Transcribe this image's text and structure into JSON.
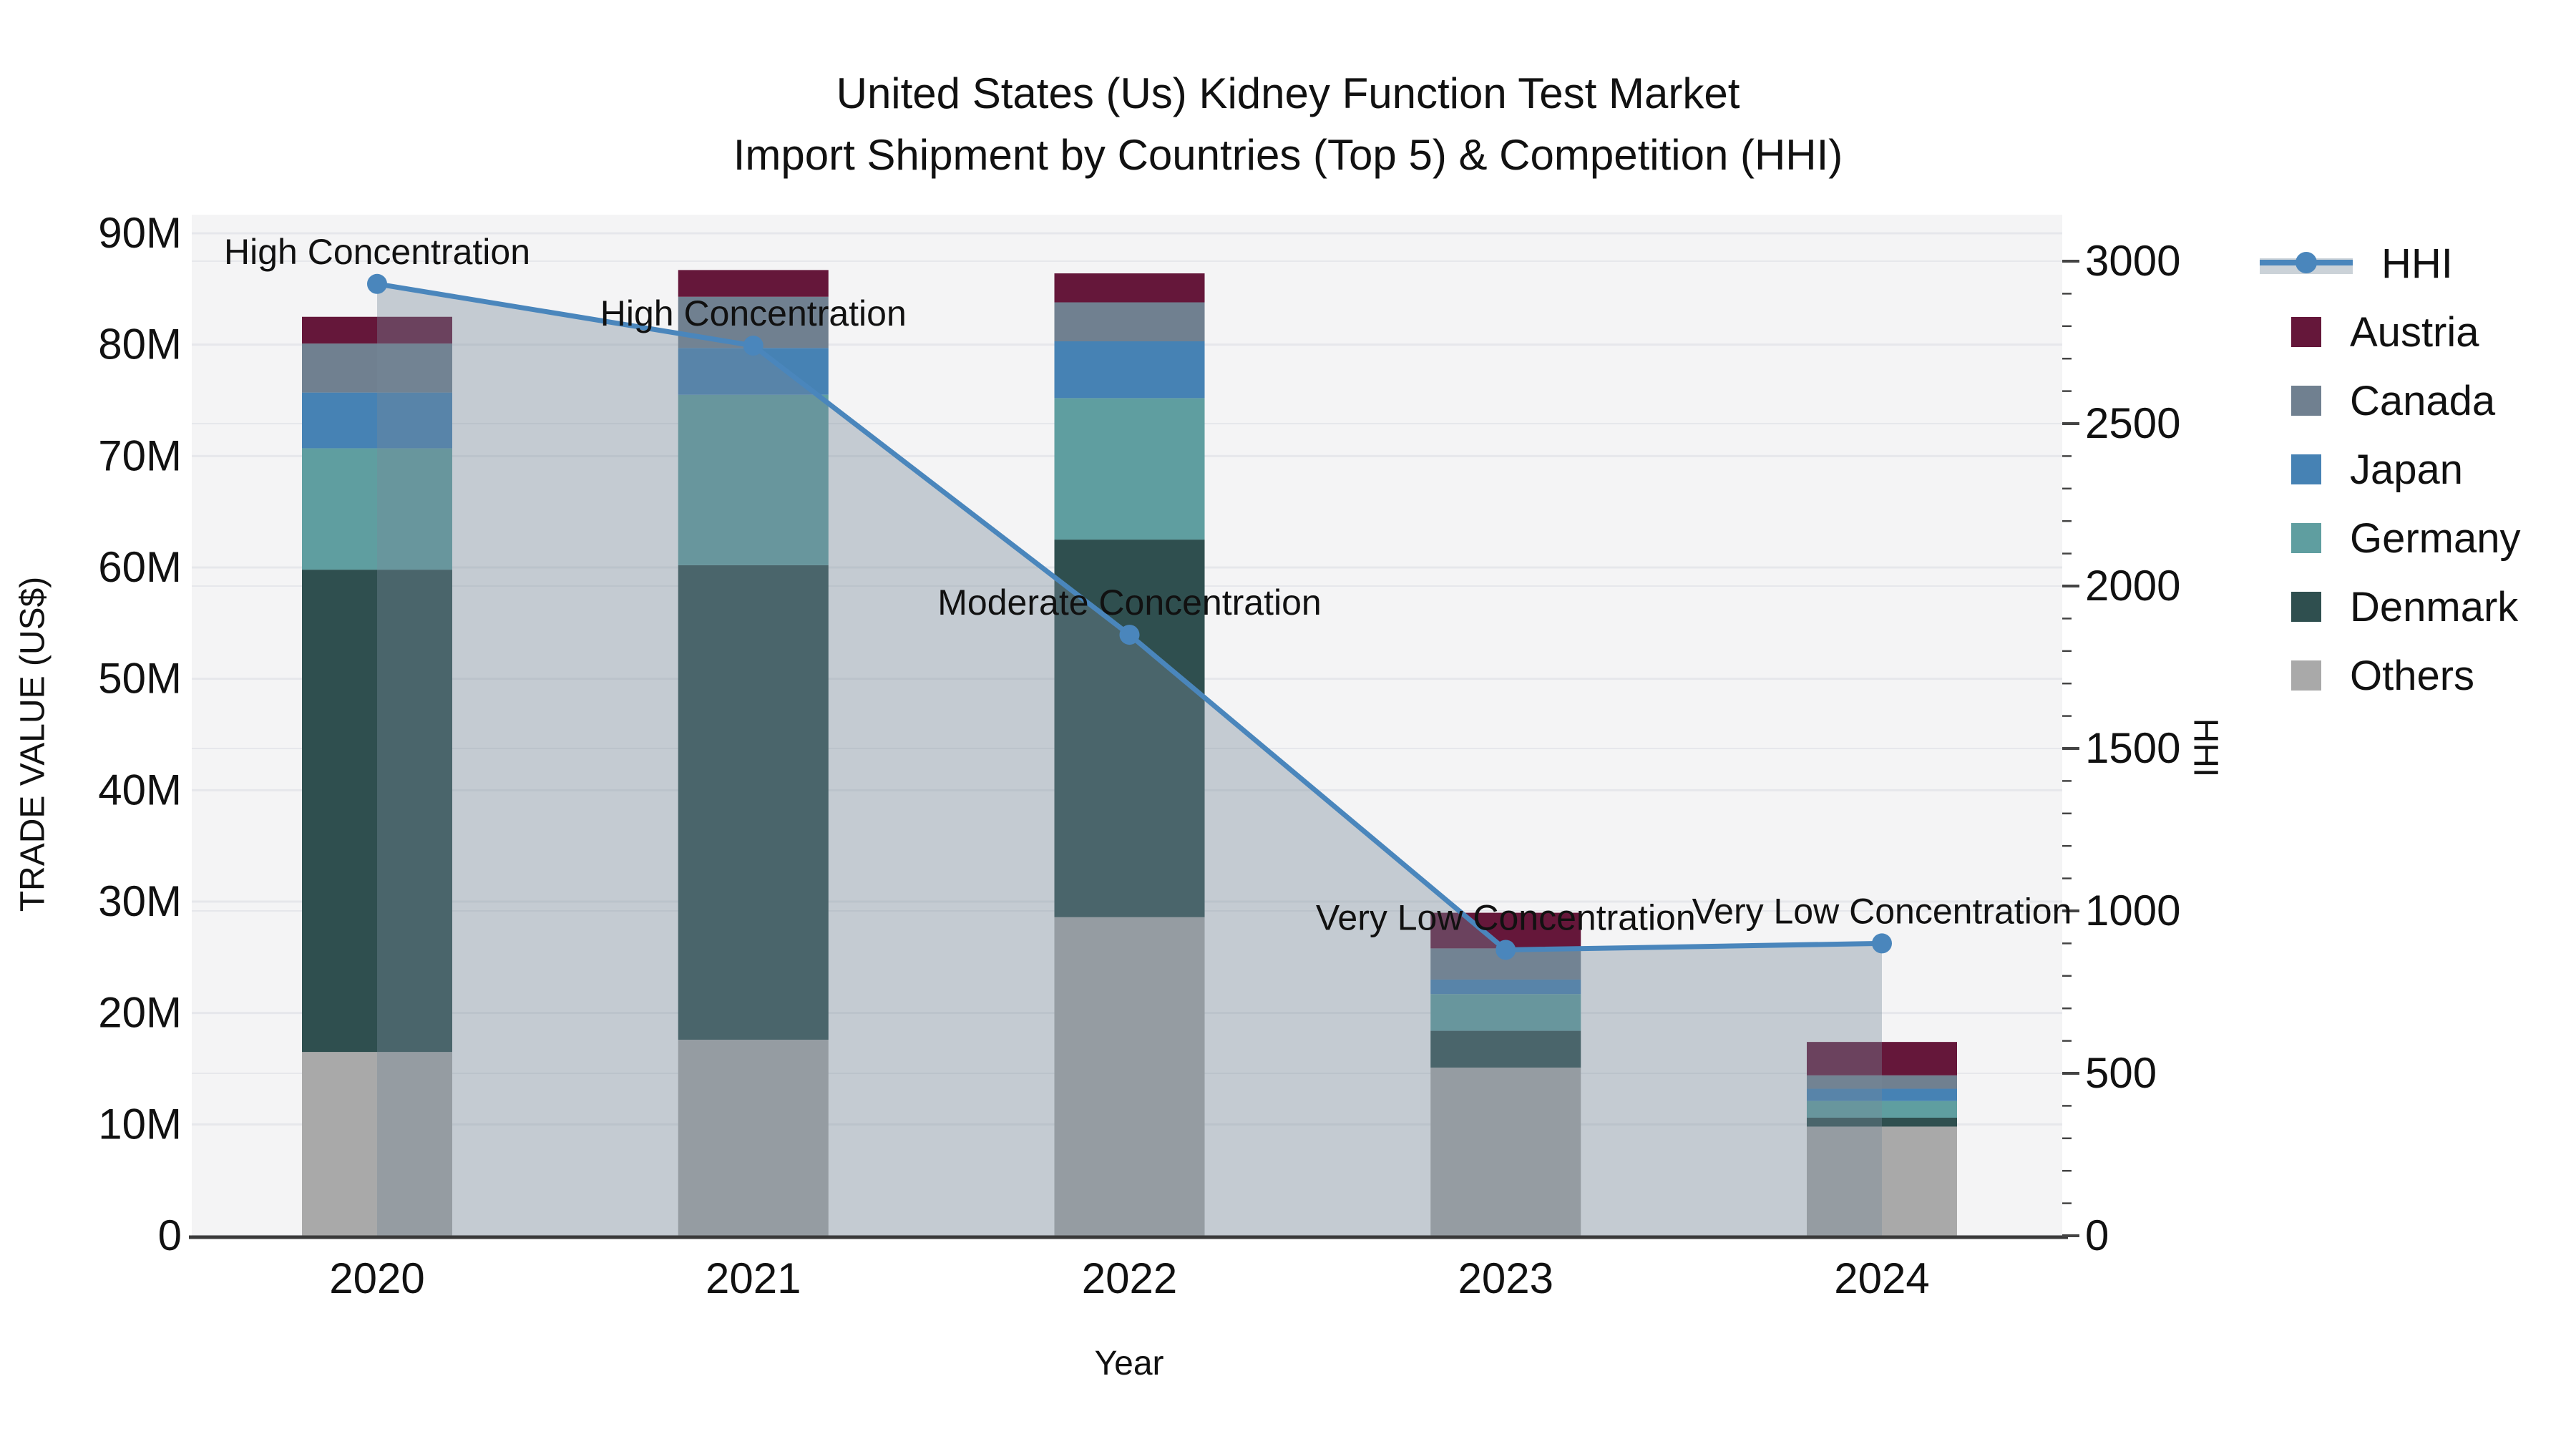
{
  "title": {
    "line1": "United States (Us) Kidney Function Test Market",
    "line2": "Import Shipment by Countries (Top 5) & Competition (HHI)"
  },
  "axes": {
    "x_label": "Year",
    "y_left_label": "TRADE VALUE (US$)",
    "y_right_label": "HHI",
    "y_left_ticks": [
      "0",
      "10M",
      "20M",
      "30M",
      "40M",
      "50M",
      "60M",
      "70M",
      "80M",
      "90M"
    ],
    "y_right_ticks": [
      "0",
      "500",
      "1000",
      "1500",
      "2000",
      "2500",
      "3000"
    ]
  },
  "legend": {
    "items": [
      {
        "label": "HHI",
        "type": "line",
        "color": "#4a86bc"
      },
      {
        "label": "Austria",
        "type": "swatch",
        "color": "#65173a"
      },
      {
        "label": "Canada",
        "type": "swatch",
        "color": "#708090"
      },
      {
        "label": "Japan",
        "type": "swatch",
        "color": "#4682b4"
      },
      {
        "label": "Germany",
        "type": "swatch",
        "color": "#5f9ea0"
      },
      {
        "label": "Denmark",
        "type": "swatch",
        "color": "#2f4f4f"
      },
      {
        "label": "Others",
        "type": "swatch",
        "color": "#a9a9a9"
      }
    ]
  },
  "chart_data": {
    "type": "bar+line",
    "title": "United States (Us) Kidney Function Test Market Import Shipment by Countries (Top 5) & Competition (HHI)",
    "xlabel": "Year",
    "ylabel_left": "TRADE VALUE (US$)",
    "ylabel_right": "HHI",
    "categories": [
      "2020",
      "2021",
      "2022",
      "2023",
      "2024"
    ],
    "bar_value_unit": "million US$",
    "stack_order_bottom_to_top": [
      "Others",
      "Denmark",
      "Germany",
      "Japan",
      "Canada",
      "Austria"
    ],
    "series": [
      {
        "name": "Austria",
        "color": "#65173a",
        "values": [
          2.4,
          2.4,
          2.6,
          3.2,
          3.0
        ]
      },
      {
        "name": "Canada",
        "color": "#708090",
        "values": [
          4.4,
          4.6,
          3.5,
          2.8,
          1.2
        ]
      },
      {
        "name": "Japan",
        "color": "#4682b4",
        "values": [
          5.0,
          4.2,
          5.1,
          1.3,
          1.1
        ]
      },
      {
        "name": "Germany",
        "color": "#5f9ea0",
        "values": [
          10.9,
          15.3,
          12.7,
          3.3,
          1.5
        ]
      },
      {
        "name": "Denmark",
        "color": "#2f4f4f",
        "values": [
          43.3,
          42.6,
          33.9,
          3.3,
          0.8
        ]
      },
      {
        "name": "Others",
        "color": "#a9a9a9",
        "values": [
          16.5,
          17.6,
          28.6,
          15.1,
          9.8
        ]
      }
    ],
    "bar_totals": [
      82.5,
      86.7,
      86.4,
      29.0,
      17.4
    ],
    "line": {
      "name": "HHI",
      "color": "#4a86bc",
      "area_fill": "rgba(119,136,153,0.38)",
      "values": [
        2930,
        2740,
        1850,
        880,
        900
      ]
    },
    "annotations": [
      {
        "category": "2020",
        "text": "High Concentration"
      },
      {
        "category": "2021",
        "text": "High Concentration"
      },
      {
        "category": "2022",
        "text": "Moderate Concentration"
      },
      {
        "category": "2023",
        "text": "Very Low Concentration"
      },
      {
        "category": "2024",
        "text": "Very Low Concentration"
      }
    ],
    "ylim_left_millions": [
      0,
      90
    ],
    "ylim_right": [
      0,
      3000
    ],
    "grid": true,
    "legend_position": "right",
    "plot_background": "#f4f4f5",
    "grid_color": "#e6e7eb",
    "axis_line_color": "#3a3a3a"
  }
}
